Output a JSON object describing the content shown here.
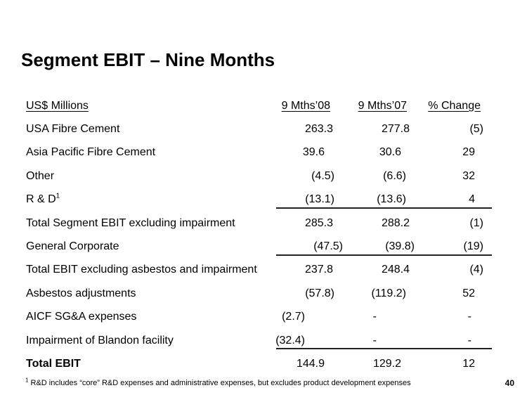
{
  "slide": {
    "title": "Segment EBIT – Nine Months",
    "page_number": "40",
    "footnote": {
      "sup": "1",
      "text": " R&D includes “core” R&D expenses and administrative expenses, but excludes product development expenses"
    },
    "colors": {
      "background": "#ffffff",
      "text": "#000000",
      "rule": "#222222"
    }
  },
  "table": {
    "columns": [
      "US$ Millions",
      "9 Mths’08",
      "9 Mths’07",
      "% Change"
    ],
    "rows": [
      {
        "label": "USA Fibre Cement",
        "sup": "",
        "v08": "263.3",
        "v07": "277.8",
        "pct": "(5)",
        "bold": false,
        "rule_after": false
      },
      {
        "label": "Asia Pacific Fibre Cement",
        "sup": "",
        "v08": "39.6",
        "v07": "30.6",
        "pct": "29",
        "bold": false,
        "rule_after": false
      },
      {
        "label": "Other",
        "sup": "",
        "v08": "(4.5)",
        "v07": "(6.6)",
        "pct": "32",
        "bold": false,
        "rule_after": false
      },
      {
        "label": "R & D",
        "sup": "1",
        "v08": "(13.1)",
        "v07": "(13.6)",
        "pct": "4",
        "bold": false,
        "rule_after": true
      },
      {
        "label": "Total Segment EBIT excluding impairment",
        "sup": "",
        "v08": "285.3",
        "v07": "288.2",
        "pct": "(1)",
        "bold": false,
        "rule_after": false
      },
      {
        "label": "General Corporate",
        "sup": "",
        "v08": "(47.5)",
        "v07": "(39.8)",
        "pct": "(19)",
        "bold": false,
        "rule_after": true
      },
      {
        "label": "Total EBIT excluding asbestos and impairment",
        "sup": "",
        "v08": "237.8",
        "v07": "248.4",
        "pct": "(4)",
        "bold": false,
        "rule_after": false
      },
      {
        "label": "Asbestos adjustments",
        "sup": "",
        "v08": "(57.8)",
        "v07": "(119.2)",
        "pct": "52",
        "bold": false,
        "rule_after": false
      },
      {
        "label": "AICF SG&A expenses",
        "sup": "",
        "v08": "(2.7)",
        "v07": "-",
        "pct": "-",
        "bold": false,
        "rule_after": false
      },
      {
        "label": "Impairment of Blandon facility",
        "sup": "",
        "v08": "(32.4)",
        "v07": "-",
        "pct": "-",
        "bold": false,
        "rule_after": true
      },
      {
        "label": "Total EBIT",
        "sup": "",
        "v08": "144.9",
        "v07": "129.2",
        "pct": "12",
        "bold": true,
        "rule_after": false
      }
    ]
  },
  "chart_data": {
    "type": "table",
    "title": "Segment EBIT – Nine Months",
    "units": "US$ Millions",
    "columns": [
      "US$ Millions",
      "9 Mths’08",
      "9 Mths’07",
      "% Change"
    ],
    "rows": [
      [
        "USA Fibre Cement",
        263.3,
        277.8,
        -5
      ],
      [
        "Asia Pacific Fibre Cement",
        39.6,
        30.6,
        29
      ],
      [
        "Other",
        -4.5,
        -6.6,
        32
      ],
      [
        "R & D",
        -13.1,
        -13.6,
        4
      ],
      [
        "Total Segment EBIT excluding impairment",
        285.3,
        288.2,
        -1
      ],
      [
        "General Corporate",
        -47.5,
        -39.8,
        -19
      ],
      [
        "Total EBIT excluding asbestos and impairment",
        237.8,
        248.4,
        -4
      ],
      [
        "Asbestos adjustments",
        -57.8,
        -119.2,
        52
      ],
      [
        "AICF SG&A expenses",
        -2.7,
        null,
        null
      ],
      [
        "Impairment of Blandon facility",
        -32.4,
        null,
        null
      ],
      [
        "Total EBIT",
        144.9,
        129.2,
        12
      ]
    ]
  }
}
